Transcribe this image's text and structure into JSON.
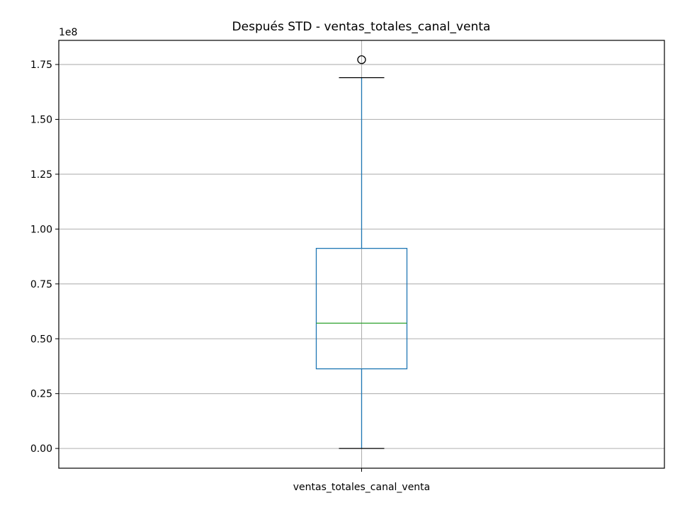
{
  "chart_data": {
    "type": "box",
    "title": "Después STD - ventas_totales_canal_venta",
    "xlabel": "",
    "ylabel": "",
    "y_offset_label": "1e8",
    "categories": [
      "ventas_totales_canal_venta"
    ],
    "box": {
      "whisker_low": 0,
      "q1": 0.363,
      "median": 0.571,
      "q3": 0.912,
      "whisker_high": 1.69,
      "outliers": [
        1.772
      ]
    },
    "ylim": [
      -0.09,
      1.86
    ],
    "yticks": [
      0.0,
      0.25,
      0.5,
      0.75,
      1.0,
      1.25,
      1.5,
      1.75
    ],
    "ytick_labels": [
      "0.00",
      "0.25",
      "0.50",
      "0.75",
      "1.00",
      "1.25",
      "1.50",
      "1.75"
    ],
    "grid": true,
    "colors": {
      "box": "#1f77b4",
      "median": "#2ca02c",
      "whisker_cap": "#000000",
      "grid": "#b0b0b0",
      "outlier": "#000000"
    }
  }
}
